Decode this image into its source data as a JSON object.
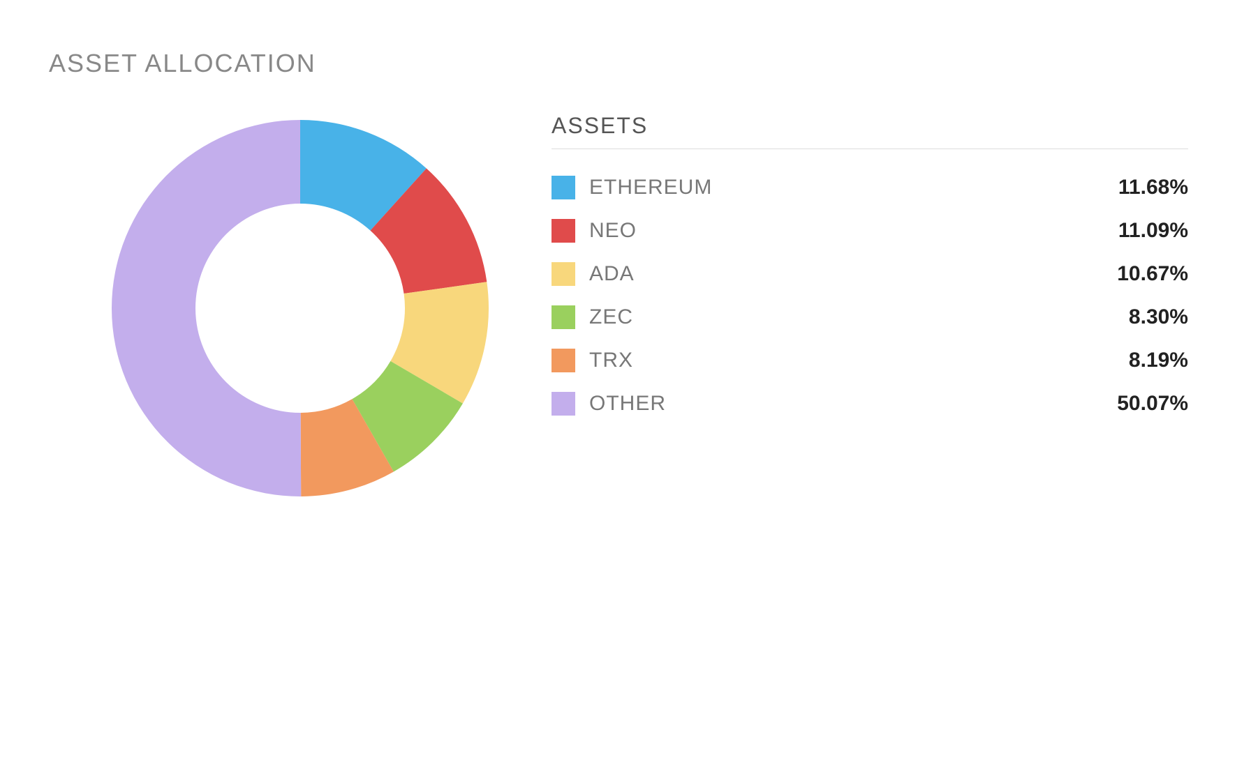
{
  "title": "ASSET ALLOCATION",
  "legend_title": "ASSETS",
  "chart": {
    "type": "donut",
    "outer_radius": 270,
    "inner_radius": 150,
    "background_color": "#ffffff",
    "start_angle_deg": -90,
    "title_fontsize": 36,
    "title_color": "#888888",
    "label_fontsize": 30,
    "label_color": "#777777",
    "value_fontsize": 30,
    "value_color": "#222222",
    "legend_title_fontsize": 32,
    "legend_title_color": "#555555",
    "divider_color": "#dddddd",
    "swatch_size": 34,
    "slices": [
      {
        "label": "ETHEREUM",
        "value": 11.68,
        "display": "11.68%",
        "color": "#48b2e8"
      },
      {
        "label": "NEO",
        "value": 11.09,
        "display": "11.09%",
        "color": "#e04b4b"
      },
      {
        "label": "ADA",
        "value": 10.67,
        "display": "10.67%",
        "color": "#f8d77c"
      },
      {
        "label": "ZEC",
        "value": 8.3,
        "display": "8.30%",
        "color": "#9ad05e"
      },
      {
        "label": "TRX",
        "value": 8.19,
        "display": "8.19%",
        "color": "#f2995e"
      },
      {
        "label": "OTHER",
        "value": 50.07,
        "display": "50.07%",
        "color": "#c3aeec"
      }
    ]
  }
}
